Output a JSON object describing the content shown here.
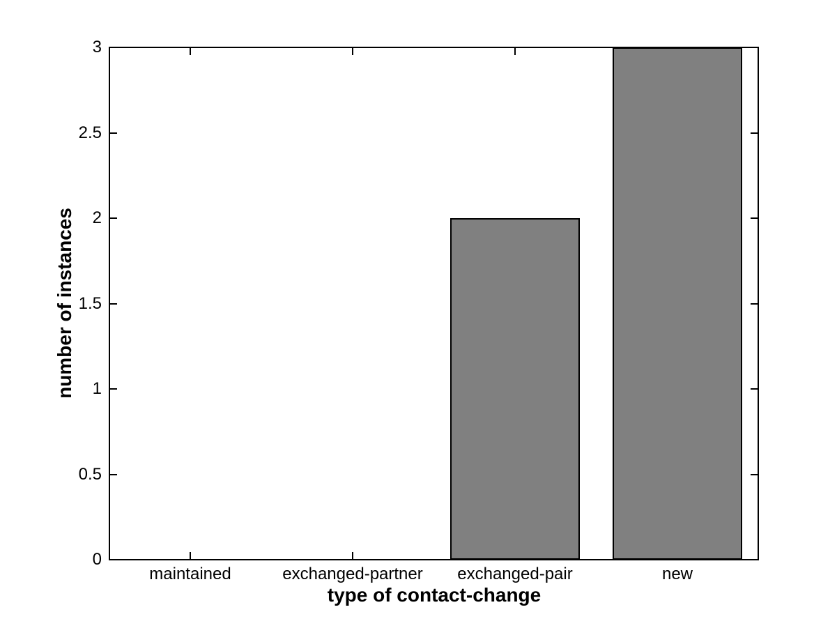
{
  "figure": {
    "background": "#ffffff"
  },
  "chart_data": {
    "type": "bar",
    "categories": [
      "maintained",
      "exchanged-partner",
      "exchanged-pair",
      "new"
    ],
    "values": [
      0,
      0,
      2,
      3
    ],
    "xlabel": "type of contact-change",
    "ylabel": "number of instances",
    "ylim": [
      0,
      3
    ],
    "yticks": [
      0,
      0.5,
      1,
      1.5,
      2,
      2.5,
      3
    ],
    "ytick_labels": [
      "0",
      "0.5",
      "1",
      "1.5",
      "2",
      "2.5",
      "3"
    ],
    "bar_color": "#808080",
    "bar_edge_color": "#000000",
    "axis_color": "#000000",
    "text_color": "#000000",
    "grid": false,
    "legend": "none",
    "bar_width_fraction": 0.8
  }
}
